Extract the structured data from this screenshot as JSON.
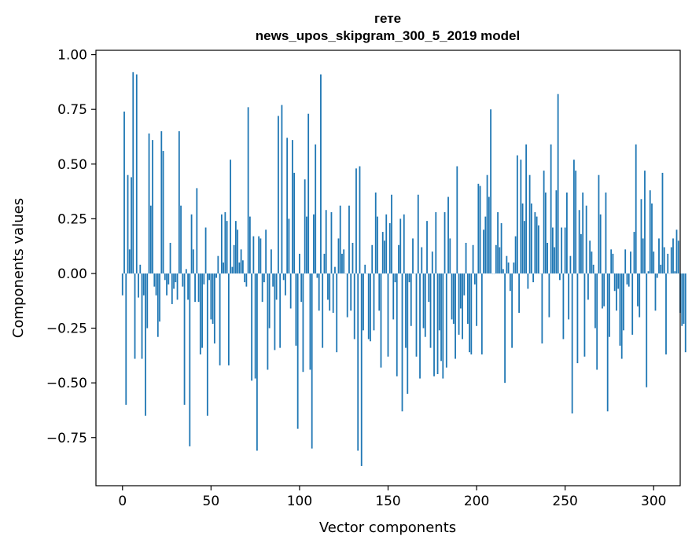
{
  "chart_data": {
    "type": "bar",
    "title_line1": "гете",
    "title_line2": "news_upos_skipgram_300_5_2019 model",
    "xlabel": "Vector components",
    "ylabel": "Components values",
    "xlim": [
      -15,
      315
    ],
    "ylim": [
      -0.97,
      1.02
    ],
    "xticks": [
      0,
      50,
      100,
      150,
      200,
      250,
      300
    ],
    "xtick_labels": [
      "0",
      "50",
      "100",
      "150",
      "200",
      "250",
      "300"
    ],
    "yticks": [
      -0.75,
      -0.5,
      -0.25,
      0.0,
      0.25,
      0.5,
      0.75,
      1.0
    ],
    "ytick_labels": [
      "−0.75",
      "−0.50",
      "−0.25",
      "0.00",
      "0.25",
      "0.50",
      "0.75",
      "1.00"
    ],
    "bar_color": "#1f77b4",
    "values": [
      -0.1,
      0.74,
      -0.6,
      0.45,
      0.11,
      0.44,
      0.92,
      -0.39,
      0.91,
      -0.11,
      0.04,
      -0.39,
      -0.1,
      -0.65,
      -0.25,
      0.64,
      0.31,
      0.61,
      -0.06,
      -0.1,
      -0.29,
      -0.22,
      0.65,
      0.56,
      -0.03,
      -0.1,
      -0.05,
      0.14,
      -0.14,
      -0.07,
      -0.04,
      -0.12,
      0.65,
      0.31,
      -0.06,
      -0.6,
      0.02,
      -0.12,
      -0.79,
      0.27,
      0.11,
      -0.13,
      0.39,
      -0.13,
      -0.37,
      -0.34,
      -0.05,
      0.21,
      -0.65,
      -0.03,
      -0.21,
      -0.23,
      -0.32,
      -0.02,
      0.08,
      -0.42,
      0.27,
      0.05,
      0.28,
      0.24,
      -0.42,
      0.52,
      0.03,
      0.13,
      0.24,
      0.2,
      0.05,
      0.11,
      0.06,
      -0.04,
      -0.06,
      0.76,
      0.26,
      -0.49,
      0.17,
      -0.48,
      -0.81,
      0.17,
      0.16,
      -0.13,
      -0.04,
      0.2,
      -0.44,
      -0.25,
      0.11,
      -0.06,
      -0.35,
      -0.12,
      0.72,
      -0.34,
      0.77,
      -0.03,
      -0.1,
      0.62,
      0.25,
      -0.16,
      0.61,
      0.46,
      -0.33,
      -0.71,
      0.09,
      -0.13,
      -0.45,
      0.43,
      0.26,
      0.73,
      -0.44,
      -0.8,
      0.27,
      0.59,
      -0.02,
      -0.17,
      0.91,
      -0.34,
      0.09,
      0.29,
      -0.12,
      -0.17,
      0.28,
      -0.18,
      0.03,
      -0.36,
      0.16,
      0.31,
      0.09,
      0.11,
      0.0,
      -0.2,
      0.31,
      -0.17,
      0.14,
      -0.3,
      0.48,
      -0.81,
      0.49,
      -0.88,
      -0.26,
      0.04,
      0.0,
      -0.3,
      -0.31,
      0.13,
      -0.26,
      0.37,
      0.26,
      -0.17,
      -0.43,
      0.19,
      0.15,
      0.27,
      -0.38,
      0.23,
      0.36,
      -0.21,
      -0.04,
      -0.47,
      0.13,
      0.25,
      -0.63,
      0.27,
      -0.34,
      -0.55,
      -0.04,
      -0.24,
      0.16,
      0.0,
      -0.38,
      0.36,
      -0.48,
      0.12,
      -0.25,
      -0.29,
      0.24,
      -0.13,
      -0.34,
      0.1,
      -0.47,
      0.28,
      -0.46,
      -0.26,
      -0.4,
      -0.48,
      0.28,
      -0.43,
      0.35,
      0.16,
      -0.21,
      -0.23,
      -0.39,
      0.49,
      -0.28,
      -0.16,
      -0.3,
      -0.1,
      0.14,
      -0.23,
      -0.36,
      -0.37,
      0.13,
      -0.05,
      -0.24,
      0.41,
      0.4,
      -0.37,
      0.2,
      0.26,
      0.45,
      0.35,
      0.75,
      0.0,
      0.0,
      0.13,
      0.28,
      0.12,
      0.23,
      0.02,
      -0.5,
      0.08,
      0.05,
      -0.08,
      -0.34,
      0.05,
      0.17,
      0.54,
      -0.18,
      0.52,
      0.32,
      0.24,
      0.59,
      -0.07,
      0.45,
      0.32,
      -0.04,
      0.28,
      0.26,
      0.22,
      0.0,
      -0.32,
      0.47,
      0.37,
      0.14,
      -0.2,
      0.59,
      0.21,
      0.12,
      0.38,
      0.82,
      -0.03,
      0.21,
      -0.3,
      0.21,
      0.37,
      -0.21,
      0.08,
      -0.64,
      0.52,
      0.47,
      -0.41,
      0.29,
      0.18,
      0.37,
      -0.38,
      0.31,
      -0.12,
      0.15,
      0.1,
      0.04,
      -0.25,
      -0.44,
      0.45,
      0.27,
      -0.16,
      -0.15,
      0.37,
      -0.63,
      -0.29,
      0.11,
      0.09,
      -0.08,
      -0.17,
      -0.07,
      -0.33,
      -0.39,
      -0.26,
      0.11,
      -0.05,
      -0.06,
      0.1,
      -0.28,
      0.19,
      0.59,
      -0.15,
      -0.2,
      0.34,
      0.16,
      0.47,
      -0.52,
      0.01,
      0.38,
      0.32,
      0.1,
      -0.17,
      -0.02,
      0.16,
      0.04,
      0.46,
      0.12,
      -0.37,
      0.09,
      0.0,
      0.12,
      0.16,
      0.01,
      0.2,
      0.15,
      -0.18,
      -0.24,
      -0.23,
      -0.36
    ]
  }
}
